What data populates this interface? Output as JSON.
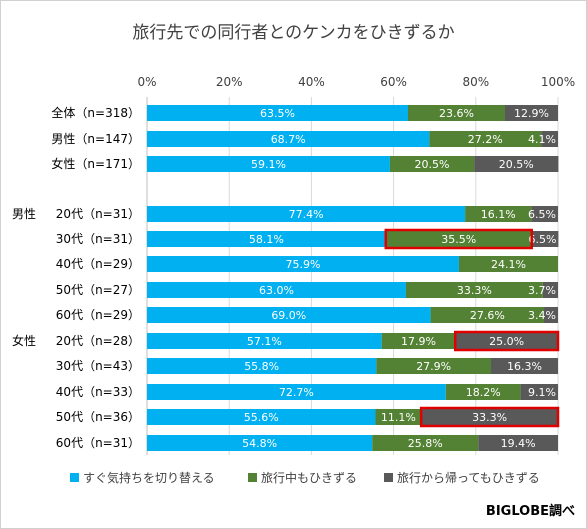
{
  "chart_data": {
    "type": "bar",
    "orientation": "horizontal",
    "stacked": true,
    "title": "旅行先での同行者とのケンカをひきずるか",
    "xlim": [
      0,
      100
    ],
    "x_ticks": [
      "0%",
      "20%",
      "40%",
      "60%",
      "80%",
      "100%"
    ],
    "grid": true,
    "legend_position": "bottom",
    "group_labels": [
      {
        "label": "",
        "rows": [
          0,
          1,
          2
        ]
      },
      {
        "label": "男性",
        "rows": [
          3,
          4,
          5,
          6,
          7
        ]
      },
      {
        "label": "女性",
        "rows": [
          8,
          9,
          10,
          11,
          12
        ]
      }
    ],
    "categories": [
      "全体（n=318）",
      "男性（n=147）",
      "女性（n=171）",
      "20代（n=31）",
      "30代（n=31）",
      "40代（n=29）",
      "50代（n=27）",
      "60代（n=29）",
      "20代（n=28）",
      "30代（n=43）",
      "40代（n=33）",
      "50代（n=36）",
      "60代（n=31）"
    ],
    "series": [
      {
        "name": "すぐ気持ちを切り替える",
        "color": "#00b0f0",
        "values": [
          63.5,
          68.7,
          59.1,
          77.4,
          58.1,
          75.9,
          63.0,
          69.0,
          57.1,
          55.8,
          72.7,
          55.6,
          54.8
        ],
        "labels": [
          "63.5%",
          "68.7%",
          "59.1%",
          "77.4%",
          "58.1%",
          "75.9%",
          "63.0%",
          "69.0%",
          "57.1%",
          "55.8%",
          "72.7%",
          "55.6%",
          "54.8%"
        ]
      },
      {
        "name": "旅行中もひきずる",
        "color": "#548235",
        "values": [
          23.6,
          27.2,
          20.5,
          16.1,
          35.5,
          24.1,
          33.3,
          27.6,
          17.9,
          27.9,
          18.2,
          11.1,
          25.8
        ],
        "labels": [
          "23.6%",
          "27.2%",
          "20.5%",
          "16.1%",
          "35.5%",
          "24.1%",
          "33.3%",
          "27.6%",
          "17.9%",
          "27.9%",
          "18.2%",
          "11.1%",
          "25.8%"
        ]
      },
      {
        "name": "旅行から帰ってもひきずる",
        "color": "#595959",
        "values": [
          12.9,
          4.1,
          20.5,
          6.5,
          6.5,
          0,
          3.7,
          3.4,
          25.0,
          16.3,
          9.1,
          33.3,
          19.4
        ],
        "labels": [
          "12.9%",
          "4.1%",
          "20.5%",
          "6.5%",
          "6.5%",
          "",
          "3.7%",
          "3.4%",
          "25.0%",
          "16.3%",
          "9.1%",
          "33.3%",
          "19.4%"
        ]
      }
    ],
    "highlights": [
      {
        "row": 4,
        "series": 1,
        "color": "#e00000"
      },
      {
        "row": 8,
        "series": 2,
        "color": "#e00000"
      },
      {
        "row": 11,
        "series": 2,
        "color": "#e00000"
      }
    ],
    "credit": "BIGLOBE調べ"
  }
}
